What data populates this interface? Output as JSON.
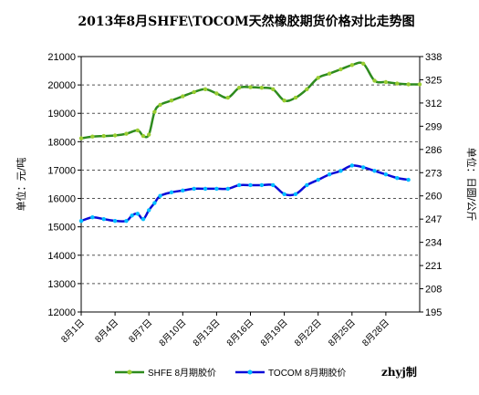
{
  "chart_data": {
    "type": "line",
    "title": "2013年8月SHFE\\TOCOM天然橡胶期货价格对比走势图",
    "ylabel_left": "单位：元/吨",
    "ylabel_right": "单位：日圆/公斤",
    "credit": "zhyj制",
    "left_axis": {
      "min": 12000,
      "max": 21000,
      "ticks": [
        "12000",
        "13000",
        "14000",
        "15000",
        "16000",
        "17000",
        "18000",
        "19000",
        "20000",
        "21000"
      ]
    },
    "right_axis": {
      "min": 195,
      "max": 338,
      "ticks": [
        "195",
        "208",
        "221",
        "234",
        "247",
        "260",
        "273",
        "286",
        "299",
        "312",
        "325",
        "338"
      ]
    },
    "x_axis": {
      "min": 1,
      "max": 31,
      "ticks": [
        "8月1日",
        "8月4日",
        "8月7日",
        "8月10日",
        "8月13日",
        "8月16日",
        "8月19日",
        "8月22日",
        "8月25日",
        "8月28日"
      ],
      "tick_positions": [
        1,
        4,
        7,
        10,
        13,
        16,
        19,
        22,
        25,
        28
      ]
    },
    "grid": "horizontal dashed",
    "legend_position": "bottom",
    "colors": {
      "shfe": "#2e8b1e",
      "shfe_marker": "#9acd32",
      "tocom": "#0a0ad8",
      "tocom_marker": "#00bfff",
      "grid": "#555555"
    },
    "series": [
      {
        "name": "SHFE 8月期胶价",
        "axis": "left",
        "x": [
          1,
          2,
          3,
          4,
          5,
          6,
          6.5,
          7,
          7.5,
          8,
          9,
          10,
          11,
          12,
          13,
          14,
          15,
          16,
          17,
          18,
          19,
          20,
          21,
          22,
          23,
          24,
          25,
          26,
          27,
          28,
          29,
          30,
          31
        ],
        "values": [
          18120,
          18180,
          18200,
          18220,
          18280,
          18400,
          18200,
          18250,
          19050,
          19300,
          19450,
          19600,
          19750,
          19850,
          19700,
          19550,
          19900,
          19920,
          19900,
          19850,
          19450,
          19550,
          19850,
          20250,
          20400,
          20550,
          20700,
          20750,
          20150,
          20100,
          20050,
          20020,
          20020
        ]
      },
      {
        "name": "TOCOM 8月期胶价",
        "axis": "right",
        "x": [
          1,
          2,
          3,
          4,
          5,
          5.5,
          6,
          6.5,
          7,
          7.5,
          8,
          9,
          10,
          11,
          12,
          13,
          14,
          15,
          16,
          17,
          18,
          19,
          20,
          21,
          22,
          23,
          24,
          25,
          26,
          27,
          28,
          29,
          30
        ],
        "values": [
          246,
          248,
          247,
          246,
          246,
          249,
          250,
          247,
          252,
          256,
          260,
          262,
          263,
          264,
          264,
          264,
          264,
          266,
          266,
          266,
          266,
          261,
          261,
          266,
          269,
          272,
          274,
          277,
          276,
          274,
          272,
          270,
          269
        ]
      }
    ]
  }
}
